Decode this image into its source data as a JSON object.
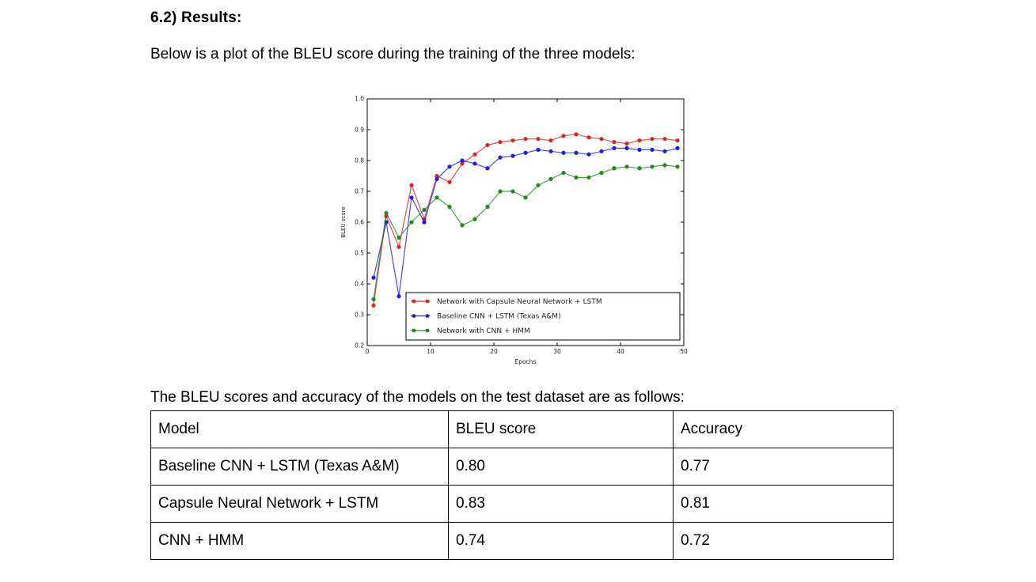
{
  "section": {
    "heading": "6.2) Results:",
    "intro": "Below is a plot of the BLEU score during the training of the three models:",
    "table_intro": "The BLEU scores and accuracy of the models on the test dataset are as follows:"
  },
  "chart_data": {
    "type": "line",
    "title": "",
    "xlabel": "Epochs",
    "ylabel": "BLEU score",
    "xlim": [
      0,
      50
    ],
    "ylim": [
      0.2,
      1.0
    ],
    "xticks": [
      "0",
      "10",
      "20",
      "30",
      "40",
      "50"
    ],
    "yticks": [
      "0.2",
      "0.3",
      "0.4",
      "0.5",
      "0.6",
      "0.7",
      "0.8",
      "0.9",
      "1.0"
    ],
    "legend_position": "lower-right",
    "x": [
      1,
      3,
      5,
      7,
      9,
      11,
      13,
      15,
      17,
      19,
      21,
      23,
      25,
      27,
      29,
      31,
      33,
      35,
      37,
      39,
      41,
      43,
      45,
      47,
      49
    ],
    "series": [
      {
        "name": "Network with Capsule Neural Network + LSTM",
        "color": "#d62728",
        "values": [
          0.33,
          0.62,
          0.52,
          0.72,
          0.61,
          0.75,
          0.73,
          0.79,
          0.82,
          0.85,
          0.86,
          0.865,
          0.87,
          0.87,
          0.865,
          0.88,
          0.885,
          0.875,
          0.87,
          0.86,
          0.855,
          0.865,
          0.87,
          0.87,
          0.865
        ]
      },
      {
        "name": "Baseline CNN + LSTM (Texas A&M)",
        "color": "#1f1fe0",
        "values": [
          0.42,
          0.6,
          0.36,
          0.68,
          0.6,
          0.74,
          0.78,
          0.8,
          0.79,
          0.775,
          0.81,
          0.815,
          0.825,
          0.835,
          0.83,
          0.825,
          0.825,
          0.82,
          0.83,
          0.84,
          0.84,
          0.835,
          0.835,
          0.83,
          0.84
        ]
      },
      {
        "name": "Network with CNN + HMM",
        "color": "#208a20",
        "values": [
          0.35,
          0.63,
          0.55,
          0.6,
          0.64,
          0.68,
          0.65,
          0.59,
          0.61,
          0.65,
          0.7,
          0.7,
          0.68,
          0.72,
          0.74,
          0.76,
          0.745,
          0.745,
          0.76,
          0.775,
          0.78,
          0.775,
          0.78,
          0.785,
          0.78
        ]
      }
    ]
  },
  "results_table": {
    "headers": [
      "Model",
      "BLEU score",
      "Accuracy"
    ],
    "rows": [
      [
        "Baseline CNN + LSTM (Texas A&M)",
        "0.80",
        "0.77"
      ],
      [
        "Capsule Neural Network + LSTM",
        "0.83",
        "0.81"
      ],
      [
        "CNN + HMM",
        "0.74",
        "0.72"
      ]
    ]
  }
}
